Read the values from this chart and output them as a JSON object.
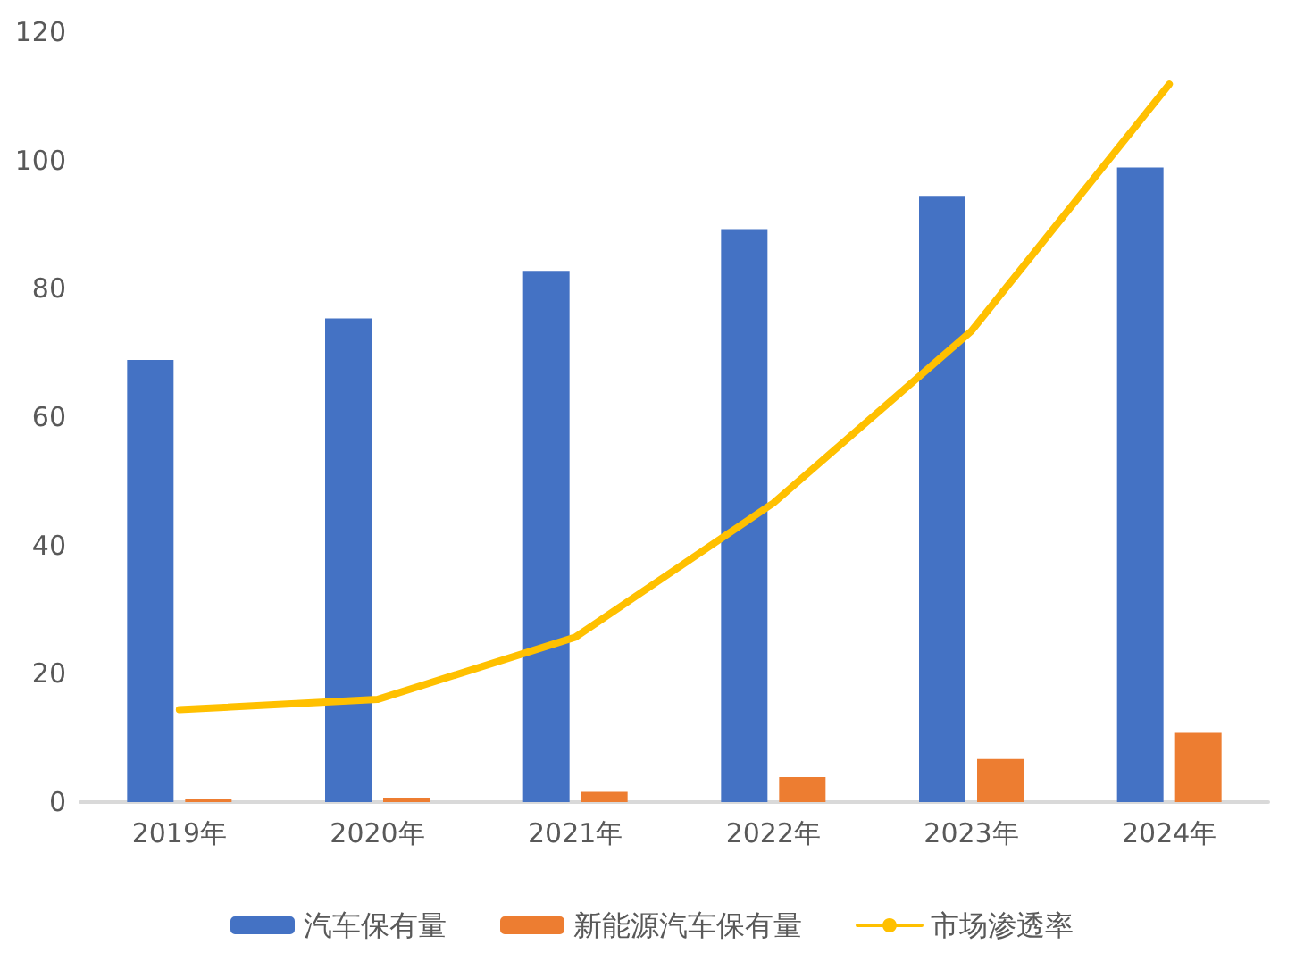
{
  "chart_data": {
    "type": "bar",
    "categories": [
      "2019年",
      "2020年",
      "2021年",
      "2022年",
      "2023年",
      "2024年"
    ],
    "series": [
      {
        "name": "汽车保有量",
        "color": "#4472c4",
        "values": [
          68.9,
          75.4,
          82.8,
          89.3,
          94.5,
          98.9
        ]
      },
      {
        "name": "新能源汽车保有量",
        "color": "#ed7d31",
        "values": [
          0.5,
          0.7,
          1.6,
          3.9,
          6.7,
          10.8
        ]
      },
      {
        "name": "市场渗透率",
        "type": "line",
        "color": "#ffc000",
        "values": [
          14.4,
          16.0,
          25.7,
          46.6,
          73.4,
          111.9
        ]
      }
    ],
    "ylim": [
      0,
      120
    ],
    "yticks": [
      0,
      20,
      40,
      60,
      80,
      100,
      120
    ],
    "grid": false,
    "legend": "bottom",
    "marker": "none"
  }
}
